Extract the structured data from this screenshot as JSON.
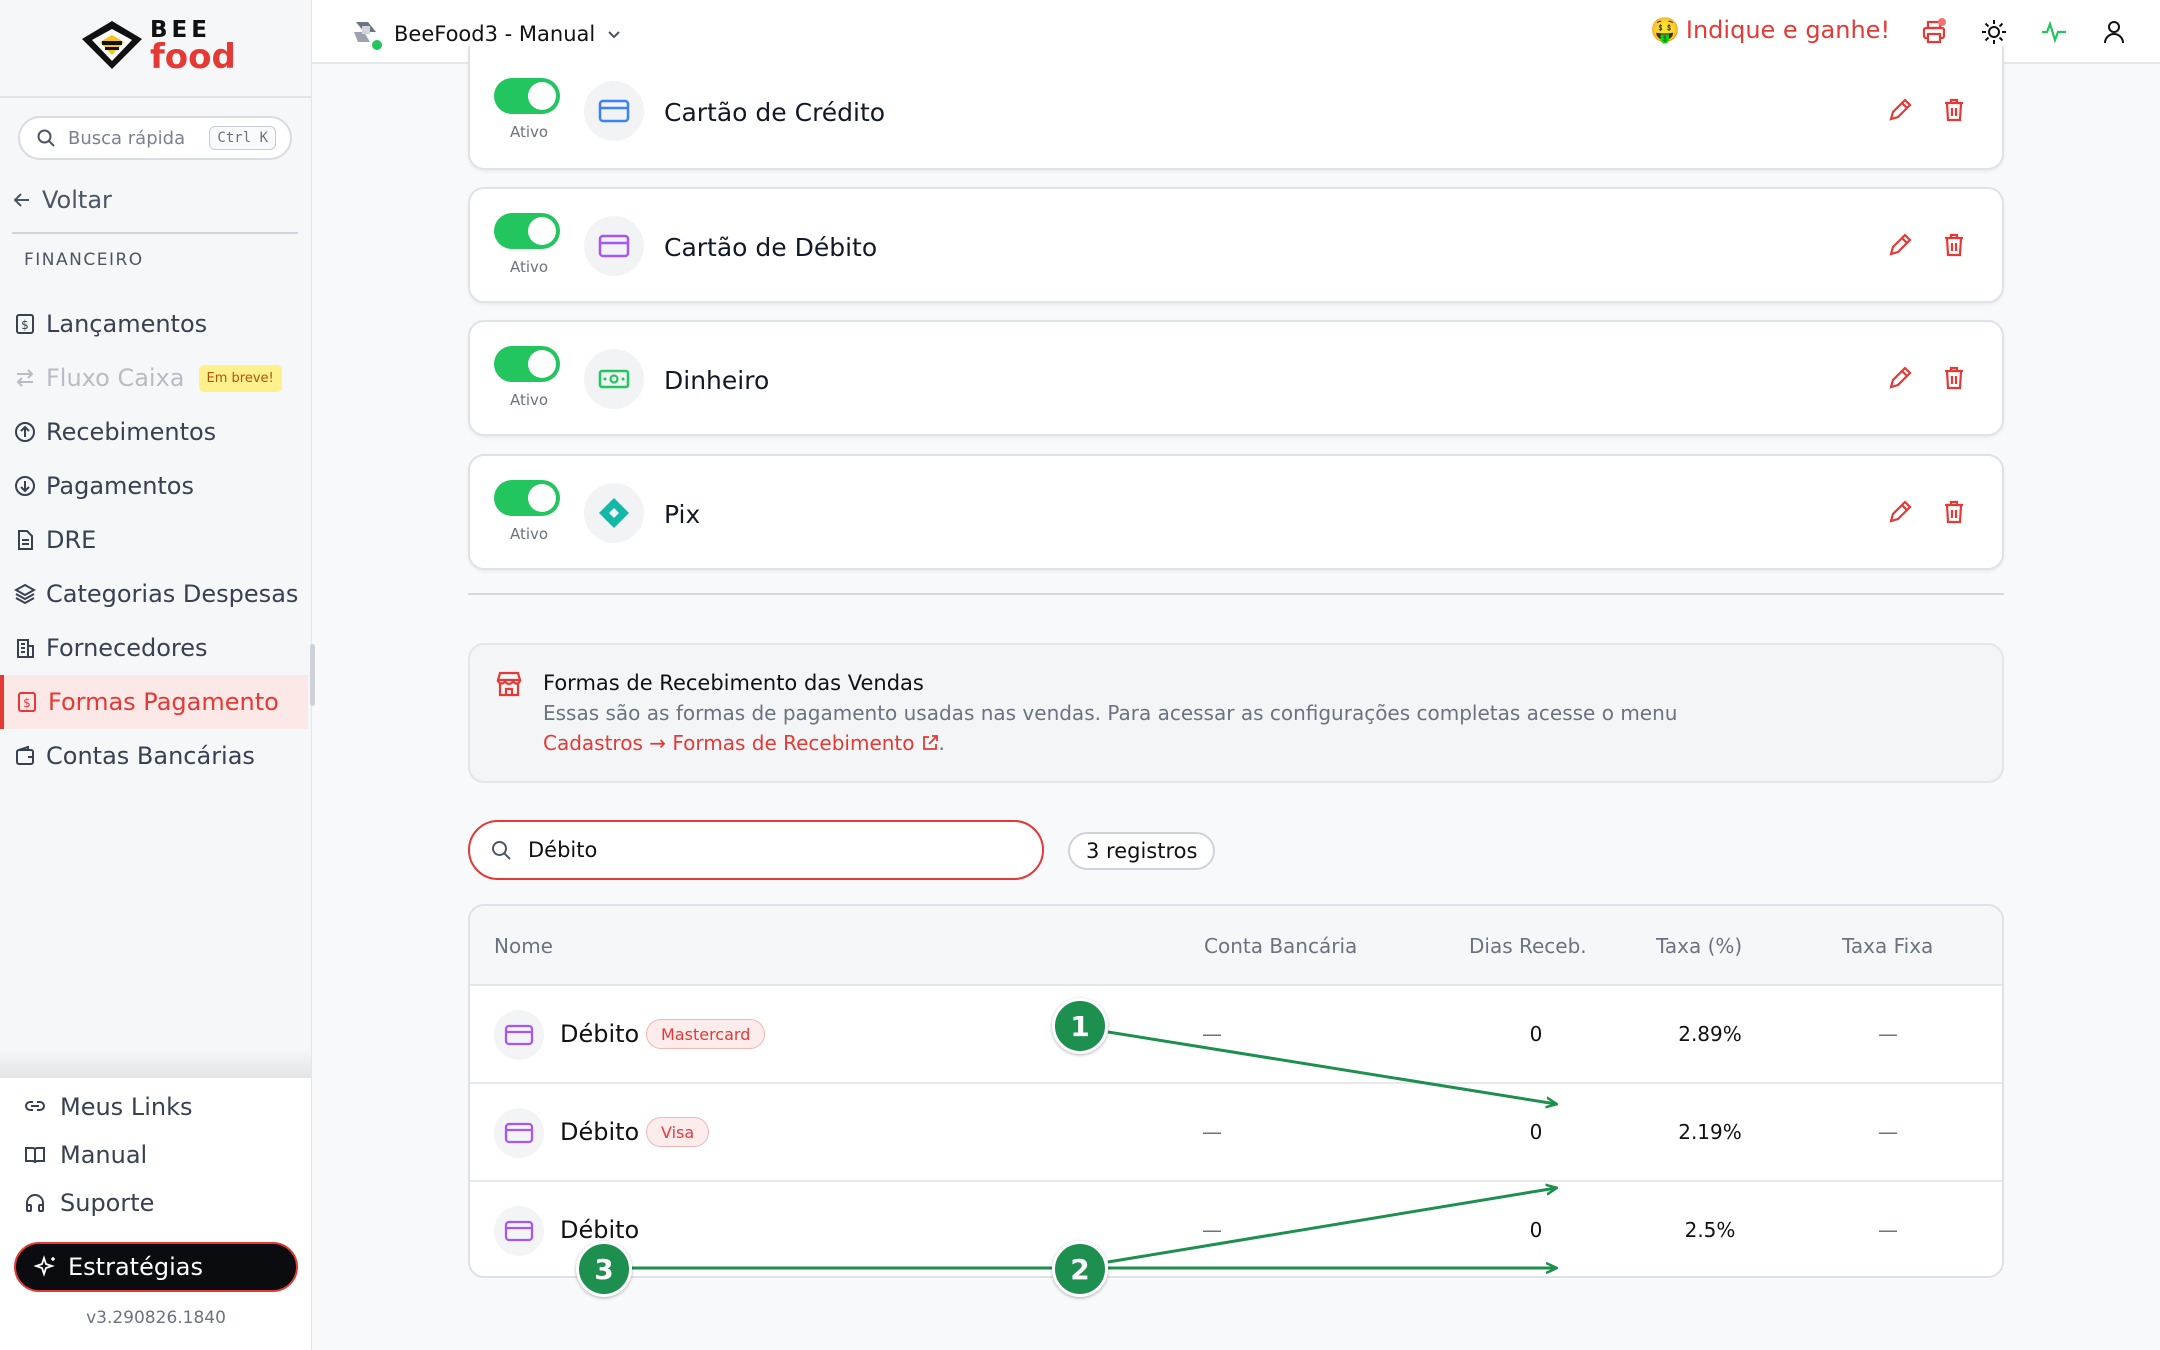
{
  "sidebar": {
    "logo_top": "BEE",
    "logo_bottom": "food",
    "search_placeholder": "Busca rápida",
    "search_shortcut": "Ctrl K",
    "back_label": "Voltar",
    "section_label": "FINANCEIRO",
    "items": [
      {
        "label": "Lançamentos",
        "icon": "receipt-icon"
      },
      {
        "label": "Fluxo Caixa",
        "icon": "transfer-icon",
        "badge": "Em breve!",
        "disabled": true
      },
      {
        "label": "Recebimentos",
        "icon": "arrow-up-circle-icon"
      },
      {
        "label": "Pagamentos",
        "icon": "arrow-down-circle-icon"
      },
      {
        "label": "DRE",
        "icon": "document-icon"
      },
      {
        "label": "Categorias Despesas",
        "icon": "layers-icon"
      },
      {
        "label": "Fornecedores",
        "icon": "building-icon"
      },
      {
        "label": "Formas Pagamento",
        "icon": "receipt-icon",
        "active": true
      },
      {
        "label": "Contas Bancárias",
        "icon": "wallet-icon"
      }
    ],
    "bottom_links": [
      "Meus Links",
      "Manual",
      "Suporte"
    ],
    "strategies_label": "Estratégias",
    "version": "v3.290826.1840"
  },
  "header": {
    "store_name": "BeeFood3 - Manual",
    "referral_label": "Indique e ganhe!",
    "referral_emoji": "🤑"
  },
  "payment_methods": [
    {
      "name": "Cartão de Crédito",
      "status": "Ativo",
      "icon": "credit-card-icon",
      "icon_color": "#3b82f6"
    },
    {
      "name": "Cartão de Débito",
      "status": "Ativo",
      "icon": "debit-card-icon",
      "icon_color": "#a855f7"
    },
    {
      "name": "Dinheiro",
      "status": "Ativo",
      "icon": "cash-icon",
      "icon_color": "#22c55e"
    },
    {
      "name": "Pix",
      "status": "Ativo",
      "icon": "pix-icon",
      "icon_color": "#14b8a6"
    }
  ],
  "info": {
    "title": "Formas de Recebimento das Vendas",
    "description": "Essas são as formas de pagamento usadas nas vendas. Para acessar as configurações completas acesse o menu",
    "link": "Cadastros → Formas de Recebimento",
    "link_suffix": "."
  },
  "filter": {
    "value": "Débito",
    "count": "3 registros"
  },
  "table": {
    "columns": [
      "Nome",
      "Conta Bancária",
      "Dias Receb.",
      "Taxa (%)",
      "Taxa Fixa"
    ],
    "rows": [
      {
        "name": "Débito",
        "badge": "Mastercard",
        "account": "—",
        "days": "0",
        "rate": "2.89%",
        "fixed": "—"
      },
      {
        "name": "Débito",
        "badge": "Visa",
        "account": "—",
        "days": "0",
        "rate": "2.19%",
        "fixed": "—"
      },
      {
        "name": "Débito",
        "badge": "",
        "account": "—",
        "days": "0",
        "rate": "2.5%",
        "fixed": "—"
      }
    ]
  },
  "annotations": [
    "1",
    "2",
    "3"
  ],
  "colors": {
    "accent": "#e53935",
    "toggle_on": "#22c55e",
    "annotation": "#1d8f4e"
  }
}
